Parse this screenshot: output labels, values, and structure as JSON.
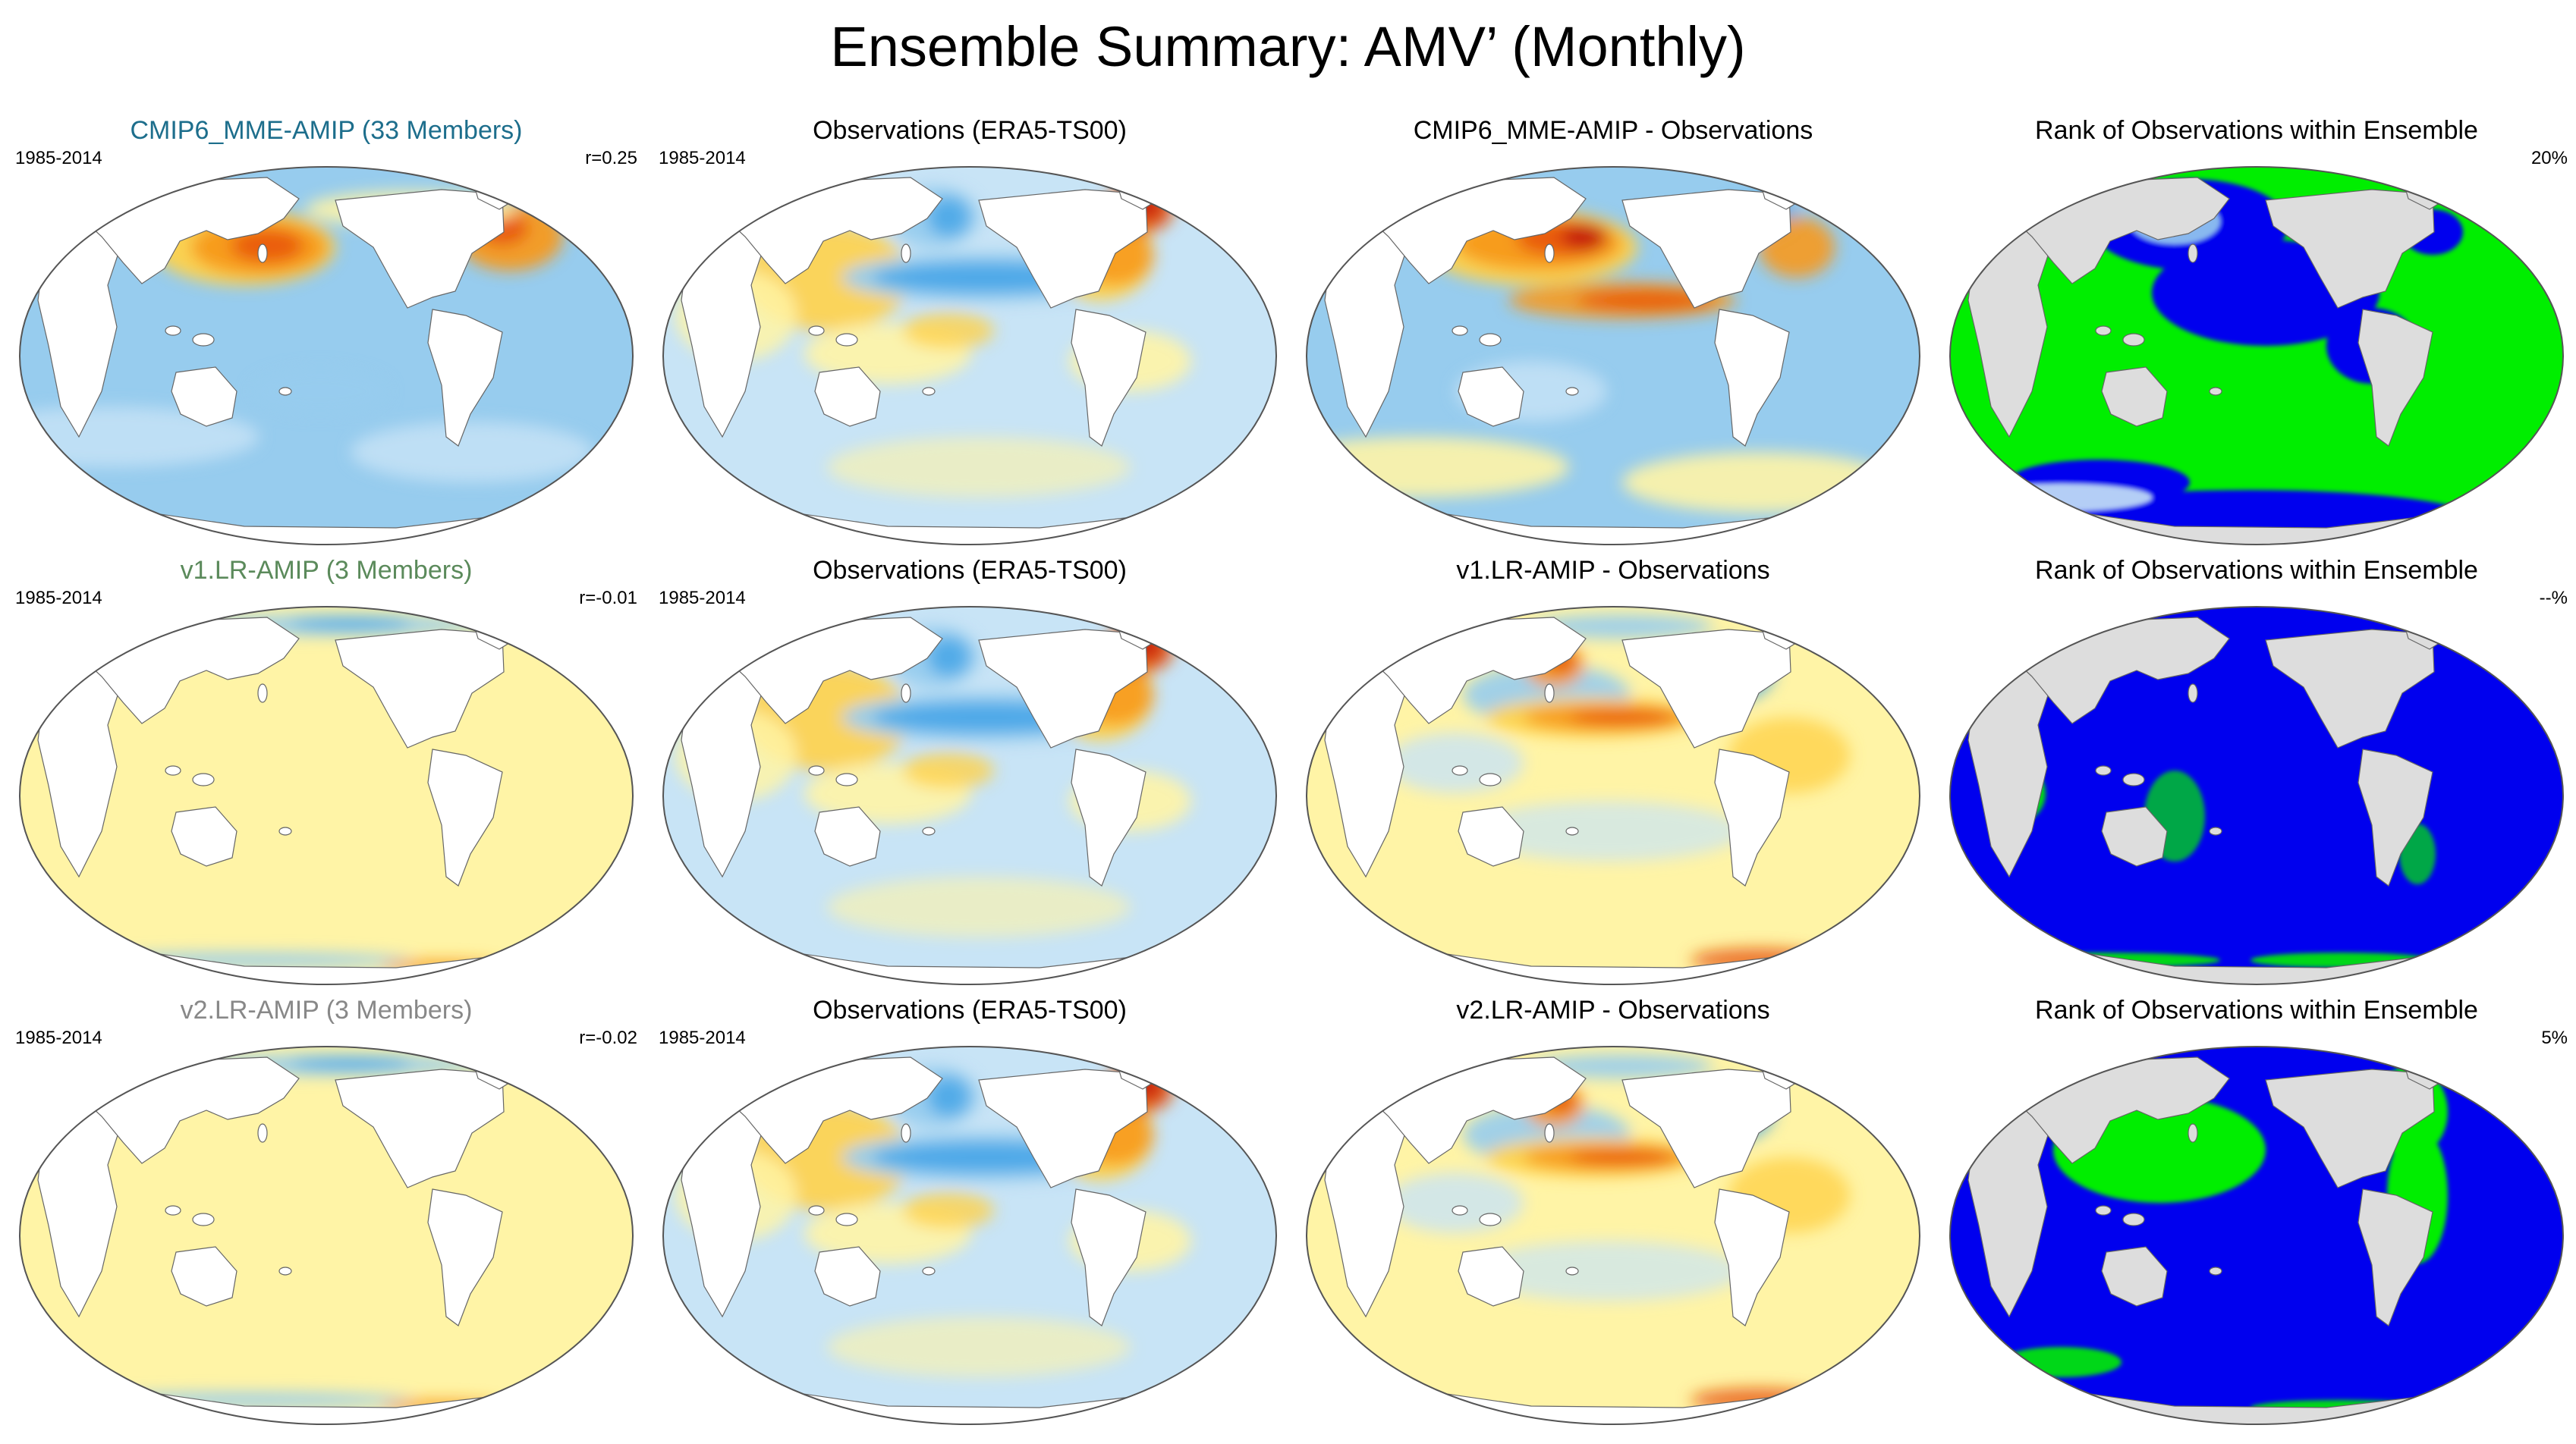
{
  "title": "Ensemble Summary: AMV’ (Monthly)",
  "colors": {
    "warm_light": "#fff4a6",
    "warm_mid": "#ffd24a",
    "warm_orange": "#f79a1e",
    "warm_deep": "#e8570e",
    "warm_red": "#c61a0b",
    "cool_light": "#c8e4f6",
    "cool_mid": "#97ccee",
    "cool_blue": "#4aa8e8",
    "cool_deep": "#1d6fd6",
    "rank_blue": "#0000ee",
    "rank_green": "#00ee00",
    "land_gray": "#dddddd"
  },
  "panels": [
    {
      "id": "r1c1",
      "kind": "model",
      "title": "CMIP6_MME-AMIP (33 Members)",
      "title_color": "#1d6e8c",
      "period": "1985-2014",
      "stat": "r=0.25",
      "scheme": "model1"
    },
    {
      "id": "r1c2",
      "kind": "obs",
      "title": "Observations (ERA5-TS00)",
      "title_color": "#000000",
      "period": "1985-2014",
      "stat": "",
      "scheme": "obs"
    },
    {
      "id": "r1c3",
      "kind": "diff",
      "title": "CMIP6_MME-AMIP - Observations",
      "title_color": "#000000",
      "period": "",
      "stat": "",
      "scheme": "diff1"
    },
    {
      "id": "r1c4",
      "kind": "rank",
      "title": "Rank of Observations within Ensemble",
      "title_color": "#000000",
      "period": "",
      "stat": "20%",
      "scheme": "rank1"
    },
    {
      "id": "r2c1",
      "kind": "model",
      "title": "v1.LR-AMIP (3 Members)",
      "title_color": "#5b8a5b",
      "period": "1985-2014",
      "stat": "r=-0.01",
      "scheme": "flat"
    },
    {
      "id": "r2c2",
      "kind": "obs",
      "title": "Observations (ERA5-TS00)",
      "title_color": "#000000",
      "period": "1985-2014",
      "stat": "",
      "scheme": "obs"
    },
    {
      "id": "r2c3",
      "kind": "diff",
      "title": "v1.LR-AMIP - Observations",
      "title_color": "#000000",
      "period": "",
      "stat": "",
      "scheme": "diff2"
    },
    {
      "id": "r2c4",
      "kind": "rank",
      "title": "Rank of Observations within Ensemble",
      "title_color": "#000000",
      "period": "",
      "stat": "--%",
      "scheme": "rank2"
    },
    {
      "id": "r3c1",
      "kind": "model",
      "title": "v2.LR-AMIP (3 Members)",
      "title_color": "#888888",
      "period": "1985-2014",
      "stat": "r=-0.02",
      "scheme": "flat"
    },
    {
      "id": "r3c2",
      "kind": "obs",
      "title": "Observations (ERA5-TS00)",
      "title_color": "#000000",
      "period": "1985-2014",
      "stat": "",
      "scheme": "obs"
    },
    {
      "id": "r3c3",
      "kind": "diff",
      "title": "v2.LR-AMIP - Observations",
      "title_color": "#000000",
      "period": "",
      "stat": "",
      "scheme": "diff2"
    },
    {
      "id": "r3c4",
      "kind": "rank",
      "title": "Rank of Observations within Ensemble",
      "title_color": "#000000",
      "period": "",
      "stat": "5%",
      "scheme": "rank3"
    }
  ]
}
